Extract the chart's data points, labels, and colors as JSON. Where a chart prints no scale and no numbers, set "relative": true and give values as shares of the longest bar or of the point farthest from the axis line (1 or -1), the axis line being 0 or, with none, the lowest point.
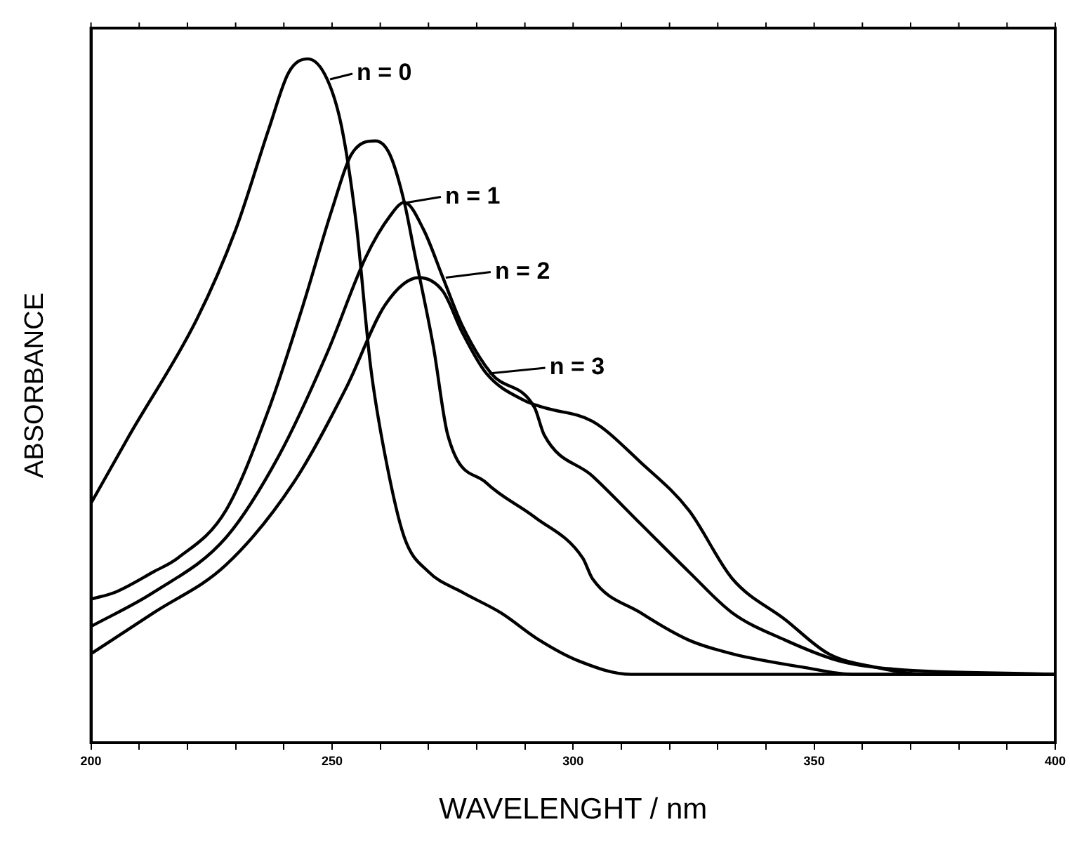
{
  "chart_data": {
    "type": "line",
    "xlabel": "WAVELENGHT / nm",
    "ylabel": "ABSORBANCE",
    "relative": true,
    "xlim": [
      200,
      400
    ],
    "xticks": [
      200,
      {
        "value": 210,
        "label": null
      },
      {
        "value": 220,
        "label": null
      },
      {
        "value": 230,
        "label": null
      },
      {
        "value": 240,
        "label": null
      },
      250,
      {
        "value": 260,
        "label": null
      },
      {
        "value": 270,
        "label": null
      },
      {
        "value": 280,
        "label": null
      },
      {
        "value": 290,
        "label": null
      },
      300,
      {
        "value": 310,
        "label": null
      },
      {
        "value": 320,
        "label": null
      },
      {
        "value": 330,
        "label": null
      },
      {
        "value": 340,
        "label": null
      },
      350,
      {
        "value": 360,
        "label": null
      },
      {
        "value": 370,
        "label": null
      },
      {
        "value": 380,
        "label": null
      },
      {
        "value": 390,
        "label": null
      },
      400
    ],
    "grid": false,
    "legend": "top",
    "marker": "none",
    "line_style": "solid",
    "series": [
      {
        "name": "n = 0",
        "color": "#000000",
        "x": [
          200,
          208,
          222,
          230,
          237,
          241,
          245,
          249,
          252,
          255,
          258,
          261,
          265,
          270,
          277,
          285,
          293,
          301,
          312,
          400
        ],
        "values": [
          0.35,
          0.45,
          0.62,
          0.75,
          0.9,
          0.98,
          1,
          0.97,
          0.9,
          0.76,
          0.55,
          0.42,
          0.3,
          0.25,
          0.22,
          0.19,
          0.15,
          0.12,
          0.1,
          0.1
        ]
      },
      {
        "name": "n = 1",
        "color": "#000000",
        "x": [
          200,
          205,
          213,
          218,
          228,
          237,
          244,
          250,
          254,
          259,
          262,
          265,
          267,
          271,
          274,
          282,
          292,
          302,
          304,
          314,
          324,
          333,
          348,
          358,
          400
        ],
        "values": [
          0.21,
          0.22,
          0.25,
          0.27,
          0.34,
          0.49,
          0.64,
          0.78,
          0.86,
          0.88,
          0.86,
          0.79,
          0.72,
          0.58,
          0.45,
          0.38,
          0.33,
          0.27,
          0.24,
          0.19,
          0.15,
          0.13,
          0.11,
          0.1,
          0.1
        ]
      },
      {
        "name": "n = 2",
        "color": "#000000",
        "x": [
          200,
          213,
          228,
          239,
          249,
          257,
          262,
          265,
          269,
          273,
          277,
          283,
          292,
          294,
          304,
          314,
          324,
          333,
          344,
          355,
          363,
          400
        ],
        "values": [
          0.17,
          0.22,
          0.3,
          0.42,
          0.57,
          0.71,
          0.77,
          0.79,
          0.75,
          0.68,
          0.61,
          0.54,
          0.49,
          0.45,
          0.39,
          0.32,
          0.25,
          0.19,
          0.15,
          0.12,
          0.11,
          0.1
        ]
      },
      {
        "name": "n = 3",
        "color": "#000000",
        "x": [
          200,
          213,
          228,
          242,
          253,
          261,
          268,
          273,
          277,
          282,
          290,
          294,
          304,
          314,
          324,
          333,
          344,
          353,
          363,
          373,
          400
        ],
        "values": [
          0.13,
          0.19,
          0.26,
          0.38,
          0.52,
          0.64,
          0.68,
          0.66,
          0.6,
          0.54,
          0.5,
          0.49,
          0.47,
          0.41,
          0.34,
          0.24,
          0.18,
          0.13,
          0.11,
          0.1,
          0.1
        ]
      }
    ]
  }
}
